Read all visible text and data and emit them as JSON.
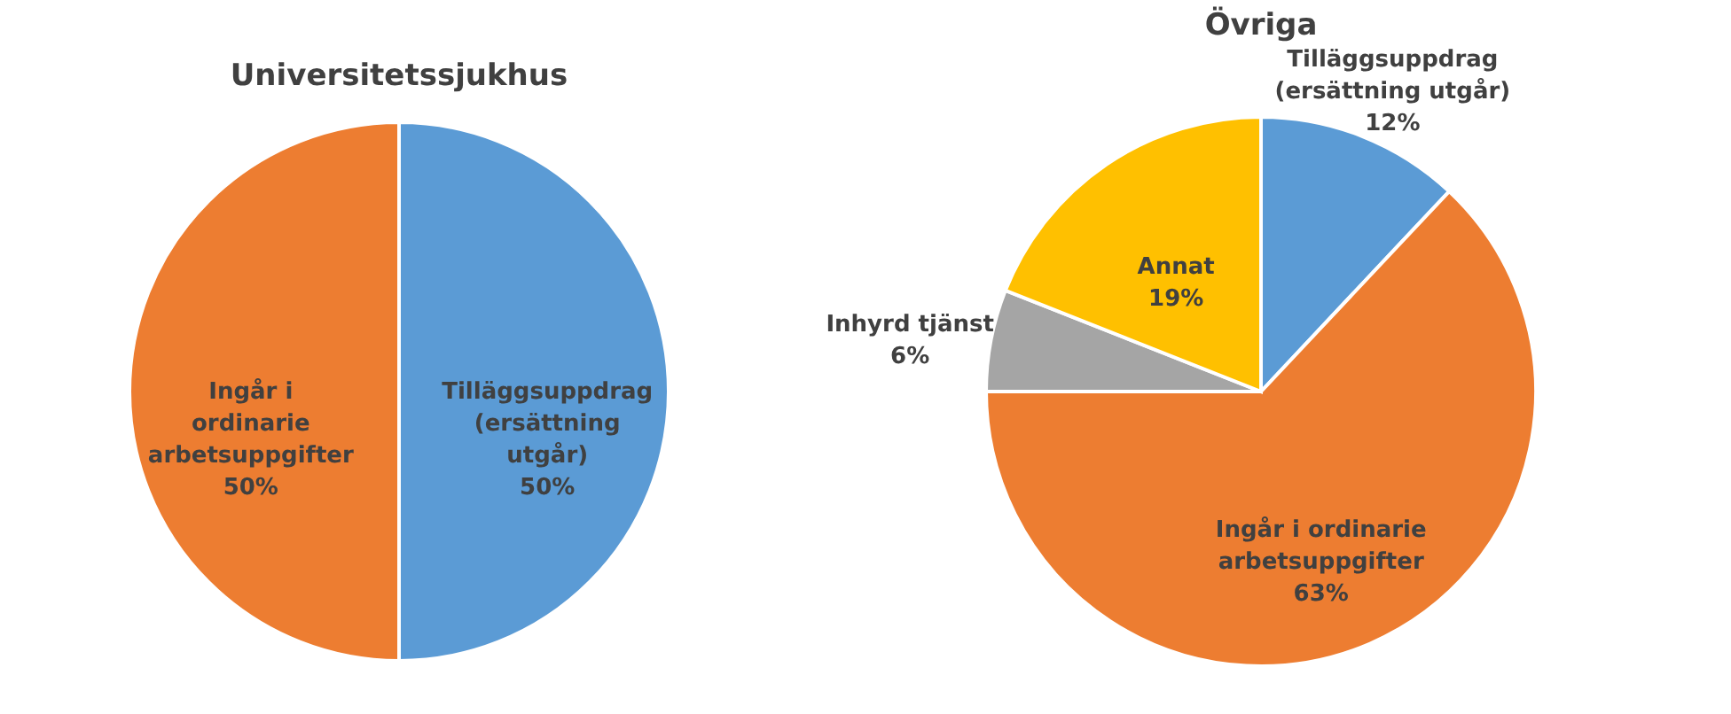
{
  "chart_data": [
    {
      "type": "pie",
      "title": "Universitetssjukhus",
      "categories": [
        "Tilläggsuppdrag (ersättning utgår)",
        "Ingår i ordinarie arbetsuppgifter"
      ],
      "values": [
        50,
        50
      ],
      "colors": [
        "#5b9bd5",
        "#ed7d31"
      ],
      "value_labels": [
        "50%",
        "50%"
      ]
    },
    {
      "type": "pie",
      "title": "Övriga",
      "categories": [
        "Tilläggsuppdrag (ersättning utgår)",
        "Ingår i ordinarie arbetsuppgifter",
        "Inhyrd tjänst",
        "Annat"
      ],
      "values": [
        12,
        63,
        6,
        19
      ],
      "colors": [
        "#5b9bd5",
        "#ed7d31",
        "#a5a5a5",
        "#ffc000"
      ],
      "value_labels": [
        "12%",
        "63%",
        "6%",
        "19%"
      ]
    }
  ]
}
